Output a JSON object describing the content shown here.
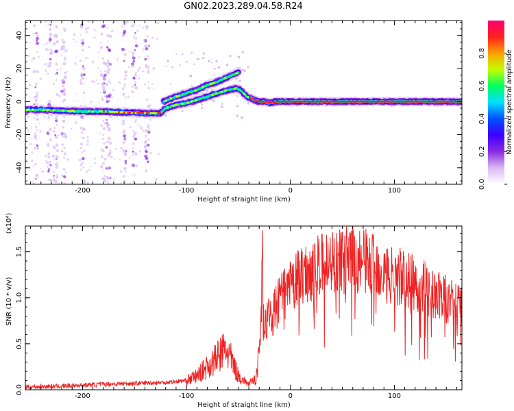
{
  "title": "GN02.2023.289.04.58.R24",
  "chart_data": [
    {
      "type": "heatmap",
      "xlabel": "Height of straight line (km)",
      "ylabel": "Frequency (Hz)",
      "xlim": [
        -255,
        165
      ],
      "ylim": [
        -50,
        49
      ],
      "xticks": [
        -200,
        -100,
        0,
        100
      ],
      "xticklabels": [
        "-200",
        "-100",
        "0",
        "100"
      ],
      "yticks": [
        -40,
        -20,
        0,
        20,
        40
      ],
      "yticklabels": [
        "-40",
        "-20",
        "0",
        "20",
        "40"
      ],
      "grid": false,
      "colorbar": {
        "label": "Normalized spectral amplitude",
        "range": [
          0,
          1
        ],
        "ticks": [
          0.0,
          0.2,
          0.4,
          0.6,
          0.8
        ],
        "ticklabels": [
          "0.0",
          "0.2",
          "0.4",
          "0.6",
          "0.8"
        ],
        "colors": [
          "#ffffff",
          "#d9b8f2",
          "#8a2be2",
          "#3d00ff",
          "#0050ff",
          "#00e0ff",
          "#00ff60",
          "#c0ff00",
          "#ffa000",
          "#ff2020",
          "#ff0070"
        ]
      },
      "ridges": [
        {
          "name": "main",
          "x": [
            -255,
            -240,
            -220,
            -200,
            -180,
            -160,
            -140,
            -125,
            -120,
            -110,
            -100,
            -90,
            -80,
            -70,
            -60,
            -52,
            -48,
            -45,
            -42,
            -38,
            -35,
            -30,
            -25,
            -20,
            -15,
            -10,
            -5,
            0,
            50,
            100,
            165
          ],
          "y": [
            -5,
            -5,
            -5.5,
            -6,
            -6,
            -6.5,
            -7,
            -7,
            -4,
            -2,
            -1,
            1,
            3,
            5,
            7,
            8,
            7,
            5,
            3,
            2,
            1,
            0,
            0,
            -1,
            0,
            0,
            0,
            0,
            0,
            0,
            0
          ]
        },
        {
          "name": "upper",
          "x": [
            -122,
            -110,
            -100,
            -90,
            -80,
            -70,
            -60,
            -52,
            -50
          ],
          "y": [
            0,
            3,
            5,
            7,
            10,
            12,
            15,
            17,
            18
          ]
        }
      ],
      "noise_columns_x": [
        -245,
        -232,
        -226,
        -218,
        -200,
        -180,
        -175,
        -160,
        -150,
        -138
      ]
    },
    {
      "type": "line",
      "xlabel": "Height of straight line (km)",
      "ylabel": "SNR (10 * v/v)",
      "y_multiplier": "(x10⁴)",
      "xlim": [
        -255,
        165
      ],
      "ylim": [
        0,
        17800
      ],
      "xticks": [
        -200,
        -100,
        0,
        100
      ],
      "xticklabels": [
        "-200",
        "-100",
        "0",
        "100"
      ],
      "yticks": [
        0,
        5000,
        10000,
        15000
      ],
      "yticklabels": [
        "0.0",
        "0.5",
        "1.0",
        "1.5"
      ],
      "color": "#ee2222",
      "series": [
        {
          "x": [
            -255,
            -220,
            -180,
            -150,
            -120,
            -100,
            -90,
            -80,
            -70,
            -62,
            -58,
            -50,
            -40,
            -33,
            -30,
            -28,
            -27,
            -26,
            -25,
            -22,
            -15,
            -10,
            0,
            10,
            20,
            30,
            40,
            50,
            60,
            70,
            80,
            90,
            100,
            110,
            120,
            130,
            140,
            150,
            160,
            165
          ],
          "y": [
            300,
            400,
            600,
            700,
            800,
            1000,
            1500,
            2500,
            3500,
            4500,
            3500,
            1500,
            600,
            1200,
            5000,
            8000,
            17800,
            9000,
            6000,
            8000,
            8500,
            10000,
            11000,
            12500,
            13000,
            13500,
            14000,
            14000,
            14200,
            14000,
            13700,
            13000,
            12500,
            12000,
            11500,
            11000,
            10200,
            9800,
            9200,
            8800
          ]
        }
      ]
    }
  ]
}
